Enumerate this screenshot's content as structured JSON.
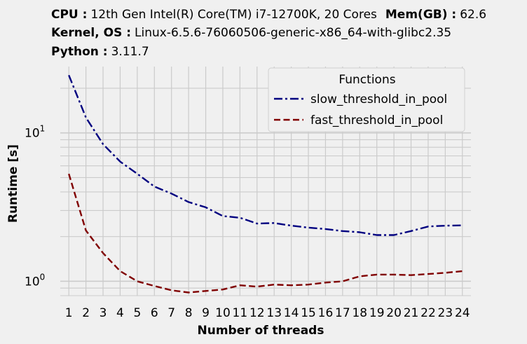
{
  "header": {
    "cpu_label": "CPU :",
    "cpu_value": "12th Gen Intel(R) Core(TM) i7-12700K, 20 Cores",
    "mem_label": "Mem(GB) :",
    "mem_value": "62.6",
    "kernel_label": "Kernel, OS :",
    "kernel_value": "Linux-6.5.6-76060506-generic-x86_64-with-glibc2.35",
    "python_label": "Python :",
    "python_value": "3.11.7"
  },
  "colors": {
    "background": "#f0f0f0",
    "grid": "#cbcbcb",
    "slow": "#000080",
    "fast": "#800000"
  },
  "chart_data": {
    "type": "line",
    "title": "",
    "xlabel": "Number of threads",
    "ylabel": "Runtime [s]",
    "yscale": "log",
    "ylim": [
      0.8,
      28
    ],
    "xlim": [
      0.5,
      24.5
    ],
    "x": [
      1,
      2,
      3,
      4,
      5,
      6,
      7,
      8,
      9,
      10,
      11,
      12,
      13,
      14,
      15,
      16,
      17,
      18,
      19,
      20,
      21,
      22,
      23,
      24
    ],
    "x_tick_labels": [
      "1",
      "2",
      "3",
      "4",
      "5",
      "6",
      "7",
      "8",
      "9",
      "10",
      "11",
      "12",
      "13",
      "14",
      "15",
      "16",
      "17",
      "18",
      "19",
      "20",
      "21",
      "22",
      "23",
      "24"
    ],
    "y_tick_labels": [
      {
        "value": 1,
        "base": "10",
        "exp": "0"
      },
      {
        "value": 10,
        "base": "10",
        "exp": "1"
      }
    ],
    "grid": true,
    "legend": {
      "title": "Functions",
      "position": "top-right"
    },
    "series": [
      {
        "name": "slow_threshold_in_pool",
        "style": "dashdot",
        "color": "#000080",
        "values": [
          24.5,
          12.7,
          8.4,
          6.4,
          5.3,
          4.35,
          3.9,
          3.42,
          3.15,
          2.75,
          2.68,
          2.45,
          2.47,
          2.37,
          2.3,
          2.25,
          2.18,
          2.14,
          2.05,
          2.05,
          2.18,
          2.34,
          2.37,
          2.38
        ]
      },
      {
        "name": "fast_threshold_in_pool",
        "style": "dashed",
        "color": "#800000",
        "values": [
          5.3,
          2.2,
          1.55,
          1.17,
          1.0,
          0.93,
          0.87,
          0.84,
          0.86,
          0.88,
          0.94,
          0.92,
          0.95,
          0.94,
          0.95,
          0.98,
          1.0,
          1.08,
          1.11,
          1.11,
          1.1,
          1.12,
          1.14,
          1.17
        ]
      }
    ]
  }
}
